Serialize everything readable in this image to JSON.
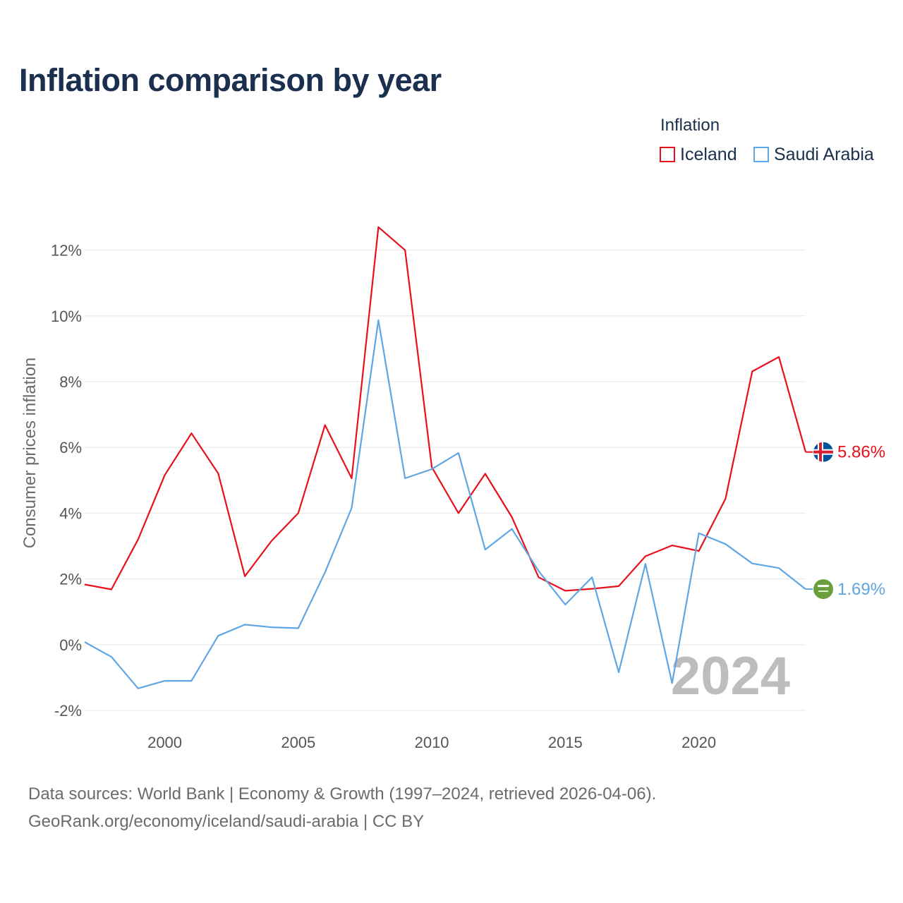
{
  "title": "Inflation comparison by year",
  "legend": {
    "title": "Inflation",
    "items": [
      {
        "label": "Iceland",
        "color": "#e8101a"
      },
      {
        "label": "Saudi Arabia",
        "color": "#5fa6e4"
      }
    ]
  },
  "source": {
    "line1": "Data sources: World Bank | Economy & Growth (1997–2024, retrieved 2026-04-06).",
    "line2": "GeoRank.org/economy/iceland/saudi-arabia | CC BY"
  },
  "chart_data": {
    "type": "line",
    "title": "Inflation comparison by year",
    "xlabel": "",
    "ylabel": "Consumer prices inflation",
    "xlim": [
      1997,
      2024
    ],
    "ylim": [
      -2.6,
      13.6
    ],
    "x_ticks": [
      2000,
      2005,
      2010,
      2015,
      2020
    ],
    "x_tick_labels": [
      "2000",
      "2005",
      "2010",
      "2015",
      "2020"
    ],
    "y_ticks": [
      -2,
      0,
      2,
      4,
      6,
      8,
      10,
      12
    ],
    "y_tick_labels": [
      "-2%",
      "0%",
      "2%",
      "4%",
      "6%",
      "8%",
      "10%",
      "12%"
    ],
    "grid": true,
    "legend_position": "top-right",
    "watermark": "2024",
    "x": [
      1997,
      1998,
      1999,
      2000,
      2001,
      2002,
      2003,
      2004,
      2005,
      2006,
      2007,
      2008,
      2009,
      2010,
      2011,
      2012,
      2013,
      2014,
      2015,
      2016,
      2017,
      2018,
      2019,
      2020,
      2021,
      2022,
      2023,
      2024
    ],
    "series": [
      {
        "name": "Iceland",
        "color": "#e8101a",
        "flag_icon": "iceland-flag-icon",
        "end_label": "5.86%",
        "values": [
          1.83,
          1.68,
          3.2,
          5.16,
          6.43,
          5.21,
          2.08,
          3.16,
          4.0,
          6.68,
          5.06,
          12.7,
          12.0,
          5.4,
          4.0,
          5.2,
          3.88,
          2.05,
          1.64,
          1.7,
          1.78,
          2.69,
          3.02,
          2.85,
          4.44,
          8.31,
          8.75,
          5.86
        ]
      },
      {
        "name": "Saudi Arabia",
        "color": "#5fa6e4",
        "flag_icon": "saudi-arabia-flag-icon",
        "end_label": "1.69%",
        "values": [
          0.08,
          -0.37,
          -1.33,
          -1.1,
          -1.1,
          0.27,
          0.61,
          0.53,
          0.5,
          2.2,
          4.16,
          9.87,
          5.06,
          5.34,
          5.83,
          2.89,
          3.52,
          2.24,
          1.22,
          2.05,
          -0.84,
          2.46,
          -1.17,
          3.39,
          3.06,
          2.47,
          2.33,
          1.69
        ]
      }
    ]
  }
}
